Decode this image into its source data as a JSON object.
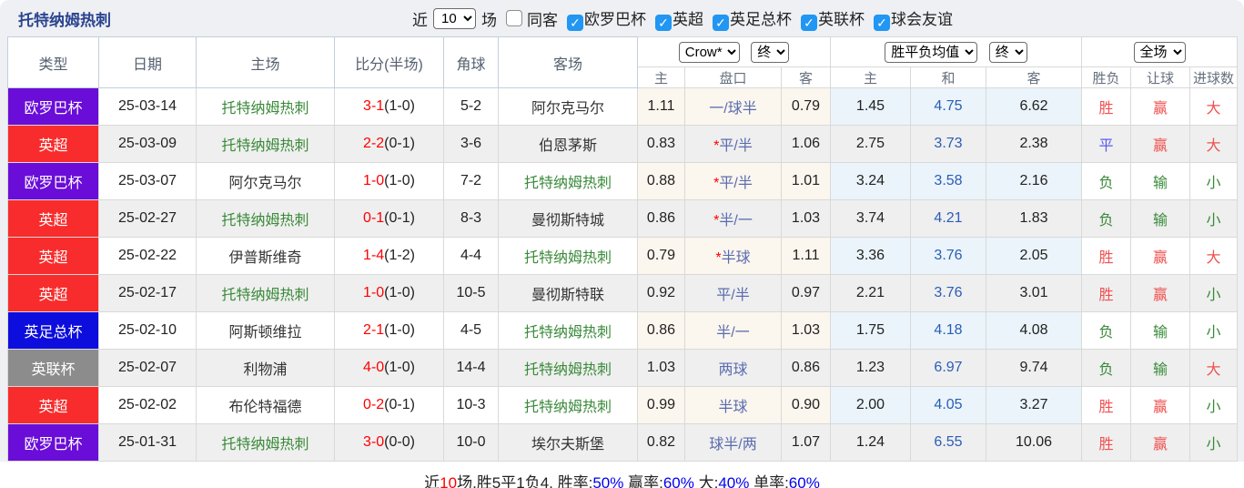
{
  "colors": {
    "accent_title": "#2b4490",
    "checkbox_blue": "#2196f3",
    "badge_purple": "#6a0dd8",
    "badge_red": "#f82c2c",
    "badge_blue": "#0d0ddd",
    "badge_gray": "#8c8c8c",
    "spurs_green": "#3a8a3a",
    "score_red": "#ff0000",
    "handicap_blue": "#5b6cae",
    "mean_blue": "#2a5db8",
    "result_red": "#f05050",
    "result_blue": "#5b5bf0",
    "result_green": "#3a8a3a",
    "summary_blue": "#0000ee"
  },
  "topbar": {
    "title": "托特纳姆热刺",
    "near_label": "近",
    "matches_count": "10",
    "matches_suffix": "场",
    "same_away_label": "同客",
    "check_glyph": "✓",
    "filters": [
      {
        "label": "欧罗巴杯",
        "checked": true
      },
      {
        "label": "英超",
        "checked": true
      },
      {
        "label": "英足总杯",
        "checked": true
      },
      {
        "label": "英联杯",
        "checked": true
      },
      {
        "label": "球会友谊",
        "checked": true
      }
    ]
  },
  "table": {
    "left_headers": [
      "类型",
      "日期",
      "主场",
      "比分(半场)",
      "角球",
      "客场"
    ],
    "group1": {
      "select_company": "Crow*",
      "select_time": "终",
      "cols": [
        "主",
        "盘口",
        "客"
      ]
    },
    "group2": {
      "select_type": "胜平负均值",
      "select_time": "终",
      "cols": [
        "主",
        "和",
        "客"
      ]
    },
    "group3": {
      "select_scope": "全场",
      "cols": [
        "胜负",
        "让球",
        "进球数"
      ]
    },
    "rows": [
      {
        "type": "欧罗巴杯",
        "tc": "purple",
        "date": "25-03-14",
        "home": "托特纳姆热刺",
        "hs": true,
        "ft": "3-1",
        "ht": "(1-0)",
        "corners": "5-2",
        "away": "阿尔克马尔",
        "as": false,
        "o_home": "1.11",
        "star": false,
        "handicap": "一/球半",
        "o_away": "0.79",
        "m_home": "1.45",
        "m_draw": "4.75",
        "m_away": "6.62",
        "res": [
          [
            "胜",
            "r"
          ],
          [
            "赢",
            "r"
          ],
          [
            "大",
            "r"
          ]
        ]
      },
      {
        "type": "英超",
        "tc": "red",
        "date": "25-03-09",
        "home": "托特纳姆热刺",
        "hs": true,
        "ft": "2-2",
        "ht": "(0-1)",
        "corners": "3-6",
        "away": "伯恩茅斯",
        "as": false,
        "o_home": "0.83",
        "star": true,
        "handicap": "平/半",
        "o_away": "1.06",
        "m_home": "2.75",
        "m_draw": "3.73",
        "m_away": "2.38",
        "res": [
          [
            "平",
            "b"
          ],
          [
            "赢",
            "r"
          ],
          [
            "大",
            "r"
          ]
        ]
      },
      {
        "type": "欧罗巴杯",
        "tc": "purple",
        "date": "25-03-07",
        "home": "阿尔克马尔",
        "hs": false,
        "ft": "1-0",
        "ht": "(1-0)",
        "corners": "7-2",
        "away": "托特纳姆热刺",
        "as": true,
        "o_home": "0.88",
        "star": true,
        "handicap": "平/半",
        "o_away": "1.01",
        "m_home": "3.24",
        "m_draw": "3.58",
        "m_away": "2.16",
        "res": [
          [
            "负",
            "g"
          ],
          [
            "输",
            "g"
          ],
          [
            "小",
            "g"
          ]
        ]
      },
      {
        "type": "英超",
        "tc": "red",
        "date": "25-02-27",
        "home": "托特纳姆热刺",
        "hs": true,
        "ft": "0-1",
        "ht": "(0-1)",
        "corners": "8-3",
        "away": "曼彻斯特城",
        "as": false,
        "o_home": "0.86",
        "star": true,
        "handicap": "半/一",
        "o_away": "1.03",
        "m_home": "3.74",
        "m_draw": "4.21",
        "m_away": "1.83",
        "res": [
          [
            "负",
            "g"
          ],
          [
            "输",
            "g"
          ],
          [
            "小",
            "g"
          ]
        ]
      },
      {
        "type": "英超",
        "tc": "red",
        "date": "25-02-22",
        "home": "伊普斯维奇",
        "hs": false,
        "ft": "1-4",
        "ht": "(1-2)",
        "corners": "4-4",
        "away": "托特纳姆热刺",
        "as": true,
        "o_home": "0.79",
        "star": true,
        "handicap": "半球",
        "o_away": "1.11",
        "m_home": "3.36",
        "m_draw": "3.76",
        "m_away": "2.05",
        "res": [
          [
            "胜",
            "r"
          ],
          [
            "赢",
            "r"
          ],
          [
            "大",
            "r"
          ]
        ]
      },
      {
        "type": "英超",
        "tc": "red",
        "date": "25-02-17",
        "home": "托特纳姆热刺",
        "hs": true,
        "ft": "1-0",
        "ht": "(1-0)",
        "corners": "10-5",
        "away": "曼彻斯特联",
        "as": false,
        "o_home": "0.92",
        "star": false,
        "handicap": "平/半",
        "o_away": "0.97",
        "m_home": "2.21",
        "m_draw": "3.76",
        "m_away": "3.01",
        "res": [
          [
            "胜",
            "r"
          ],
          [
            "赢",
            "r"
          ],
          [
            "小",
            "g"
          ]
        ]
      },
      {
        "type": "英足总杯",
        "tc": "blue",
        "date": "25-02-10",
        "home": "阿斯顿维拉",
        "hs": false,
        "ft": "2-1",
        "ht": "(1-0)",
        "corners": "4-5",
        "away": "托特纳姆热刺",
        "as": true,
        "o_home": "0.86",
        "star": false,
        "handicap": "半/一",
        "o_away": "1.03",
        "m_home": "1.75",
        "m_draw": "4.18",
        "m_away": "4.08",
        "res": [
          [
            "负",
            "g"
          ],
          [
            "输",
            "g"
          ],
          [
            "小",
            "g"
          ]
        ]
      },
      {
        "type": "英联杯",
        "tc": "gray",
        "date": "25-02-07",
        "home": "利物浦",
        "hs": false,
        "ft": "4-0",
        "ht": "(1-0)",
        "corners": "14-4",
        "away": "托特纳姆热刺",
        "as": true,
        "o_home": "1.03",
        "star": false,
        "handicap": "两球",
        "o_away": "0.86",
        "m_home": "1.23",
        "m_draw": "6.97",
        "m_away": "9.74",
        "res": [
          [
            "负",
            "g"
          ],
          [
            "输",
            "g"
          ],
          [
            "大",
            "r"
          ]
        ]
      },
      {
        "type": "英超",
        "tc": "red",
        "date": "25-02-02",
        "home": "布伦特福德",
        "hs": false,
        "ft": "0-2",
        "ht": "(0-1)",
        "corners": "10-3",
        "away": "托特纳姆热刺",
        "as": true,
        "o_home": "0.99",
        "star": false,
        "handicap": "半球",
        "o_away": "0.90",
        "m_home": "2.00",
        "m_draw": "4.05",
        "m_away": "3.27",
        "res": [
          [
            "胜",
            "r"
          ],
          [
            "赢",
            "r"
          ],
          [
            "小",
            "g"
          ]
        ]
      },
      {
        "type": "欧罗巴杯",
        "tc": "purple",
        "date": "25-01-31",
        "home": "托特纳姆热刺",
        "hs": true,
        "ft": "3-0",
        "ht": "(0-0)",
        "corners": "10-0",
        "away": "埃尔夫斯堡",
        "as": false,
        "o_home": "0.82",
        "star": false,
        "handicap": "球半/两",
        "o_away": "1.07",
        "m_home": "1.24",
        "m_draw": "6.55",
        "m_away": "10.06",
        "res": [
          [
            "胜",
            "r"
          ],
          [
            "赢",
            "r"
          ],
          [
            "小",
            "g"
          ]
        ]
      }
    ]
  },
  "summary": {
    "segments": [
      [
        "近",
        "k"
      ],
      [
        "10",
        "r"
      ],
      [
        "场,胜5平1负4, 胜率:",
        "k"
      ],
      [
        "50%",
        "b"
      ],
      [
        " 赢率:",
        "k"
      ],
      [
        "60%",
        "b"
      ],
      [
        " 大:",
        "k"
      ],
      [
        "40%",
        "b"
      ],
      [
        " 单率:",
        "k"
      ],
      [
        "60%",
        "b"
      ]
    ]
  }
}
